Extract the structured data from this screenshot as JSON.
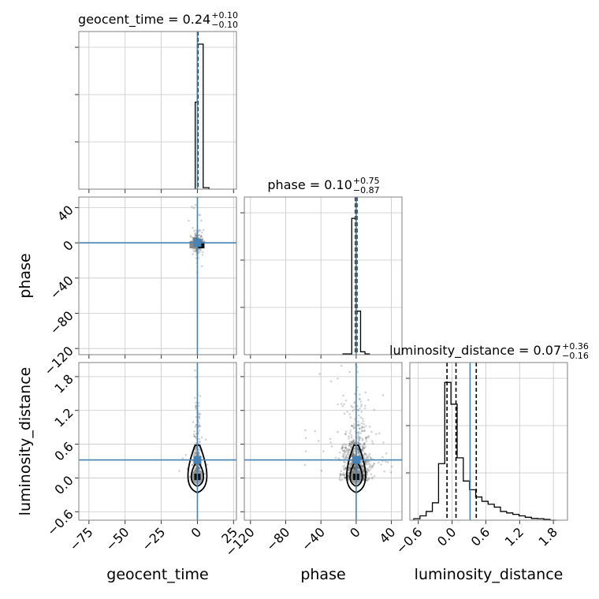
{
  "chart_data": {
    "type": "corner",
    "grid": true,
    "truth_color": "#4682b4",
    "hist_color": "#000000",
    "scatter_color": "#555555",
    "parameters": [
      "geocent_time",
      "phase",
      "luminosity_distance"
    ],
    "truth_values": {
      "geocent_time": 0.0,
      "phase": 0.0,
      "luminosity_distance": 0.32
    },
    "titles": [
      {
        "param": "geocent_time",
        "prefix": "geocent_time = ",
        "median": "0.24",
        "plus": "+0.10",
        "minus": "−0.10"
      },
      {
        "param": "phase",
        "prefix": "phase = ",
        "median": "0.10",
        "plus": "+0.75",
        "minus": "−0.87"
      },
      {
        "param": "luminosity_distance",
        "prefix": "luminosity_distance = ",
        "median": "0.07",
        "plus": "+0.36",
        "minus": "−0.16"
      }
    ],
    "axes": {
      "geocent_time": {
        "range": [
          -82,
          27
        ],
        "ticks": [
          -75,
          -50,
          -25,
          0,
          25
        ],
        "tick_labels": [
          "−75",
          "−50",
          "−25",
          "0",
          "25"
        ]
      },
      "phase": {
        "range": [
          -127,
          52
        ],
        "ticks": [
          -120,
          -80,
          -40,
          0,
          40
        ],
        "tick_labels": [
          "−120",
          "−80",
          "−40",
          "0",
          "40"
        ]
      },
      "luminosity_distance": {
        "range": [
          -0.75,
          2.05
        ],
        "ticks": [
          -0.6,
          0.0,
          0.6,
          1.2,
          1.8
        ],
        "tick_labels": [
          "−0.6",
          "0.0",
          "0.6",
          "1.2",
          "1.8"
        ]
      }
    },
    "histograms": {
      "geocent_time": {
        "edges": [
          -1.5,
          0,
          4,
          8
        ],
        "counts": [
          0.6,
          1.0,
          0.01
        ],
        "quantiles": [
          0.14,
          0.24,
          0.34
        ]
      },
      "phase": {
        "edges": [
          -15,
          -5,
          0,
          5,
          10,
          15
        ],
        "counts": [
          0.005,
          0.94,
          0.3,
          0.02,
          0.005
        ],
        "quantiles": [
          -0.77,
          0.1,
          0.85
        ]
      },
      "luminosity_distance": {
        "edges": [
          -0.68,
          -0.57,
          -0.46,
          -0.35,
          -0.24,
          -0.13,
          -0.02,
          0.09,
          0.2,
          0.31,
          0.42,
          0.53,
          0.64,
          0.75,
          0.86,
          0.97,
          1.08,
          1.19,
          1.3,
          1.41,
          1.52,
          1.63,
          1.74,
          1.85
        ],
        "counts": [
          0.01,
          0.03,
          0.06,
          0.12,
          0.39,
          0.95,
          0.8,
          0.43,
          0.27,
          0.21,
          0.16,
          0.13,
          0.11,
          0.09,
          0.06,
          0.05,
          0.04,
          0.03,
          0.02,
          0.012,
          0.01,
          0.005,
          0.0
        ],
        "quantiles": [
          -0.09,
          0.07,
          0.43
        ]
      }
    }
  }
}
